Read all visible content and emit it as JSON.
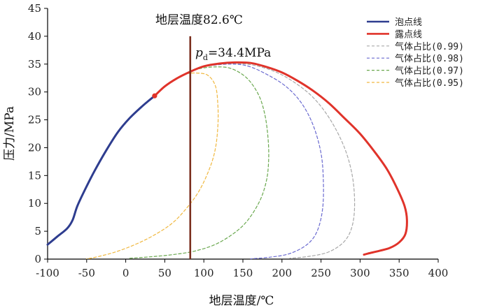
{
  "chart_data": {
    "type": "line",
    "title": "地层温度82.6℃",
    "xlabel": "地层温度/℃",
    "ylabel": "压力/MPa",
    "xlim": [
      -100,
      400
    ],
    "ylim": [
      0,
      45
    ],
    "xticks": [
      "-100",
      "-50",
      "0",
      "50",
      "100",
      "150",
      "200",
      "250",
      "300",
      "350",
      "400"
    ],
    "yticks": [
      "0",
      "5",
      "10",
      "15",
      "20",
      "25",
      "30",
      "35",
      "40",
      "45"
    ],
    "grid": false,
    "legend_position": "top-right",
    "series": [
      {
        "name": "泡点线",
        "color": "#2e3d8f",
        "style": "solid",
        "points": [
          [
            -100,
            2.6
          ],
          [
            -88,
            4.0
          ],
          [
            -75,
            5.5
          ],
          [
            -68,
            7.0
          ],
          [
            -62,
            9.5
          ],
          [
            -52,
            12.5
          ],
          [
            -40,
            15.8
          ],
          [
            -25,
            19.5
          ],
          [
            -10,
            22.8
          ],
          [
            5,
            25.3
          ],
          [
            20,
            27.3
          ],
          [
            30,
            28.5
          ],
          [
            37,
            29.3
          ]
        ]
      },
      {
        "name": "露点线",
        "color": "#e0332a",
        "style": "solid",
        "points": [
          [
            37,
            29.3
          ],
          [
            50,
            31.0
          ],
          [
            65,
            32.4
          ],
          [
            82,
            33.6
          ],
          [
            100,
            34.6
          ],
          [
            120,
            35.1
          ],
          [
            140,
            35.3
          ],
          [
            160,
            35.2
          ],
          [
            180,
            34.5
          ],
          [
            200,
            33.5
          ],
          [
            220,
            32.0
          ],
          [
            240,
            30.2
          ],
          [
            260,
            28.0
          ],
          [
            280,
            25.3
          ],
          [
            300,
            22.5
          ],
          [
            320,
            19.0
          ],
          [
            335,
            16.0
          ],
          [
            348,
            12.5
          ],
          [
            357,
            9.5
          ],
          [
            360,
            7.0
          ],
          [
            358,
            4.5
          ],
          [
            350,
            3.0
          ],
          [
            338,
            2.0
          ],
          [
            325,
            1.5
          ],
          [
            310,
            1.0
          ],
          [
            305,
            0.8
          ]
        ]
      },
      {
        "name": "气体占比(0.99)",
        "color": "#a8a8a8",
        "style": "dashed",
        "points": [
          [
            100,
            34.6
          ],
          [
            130,
            35.0
          ],
          [
            160,
            34.9
          ],
          [
            190,
            33.7
          ],
          [
            215,
            31.8
          ],
          [
            240,
            29.0
          ],
          [
            262,
            25.0
          ],
          [
            280,
            20.0
          ],
          [
            290,
            15.0
          ],
          [
            293,
            10.0
          ],
          [
            290,
            6.0
          ],
          [
            280,
            3.2
          ],
          [
            260,
            1.3
          ],
          [
            235,
            0.5
          ],
          [
            210,
            0.15
          ]
        ]
      },
      {
        "name": "气体占比(0.98)",
        "color": "#6a6ad0",
        "style": "dashed",
        "points": [
          [
            100,
            34.6
          ],
          [
            130,
            35.0
          ],
          [
            155,
            34.7
          ],
          [
            180,
            33.2
          ],
          [
            205,
            31.0
          ],
          [
            225,
            28.0
          ],
          [
            240,
            24.0
          ],
          [
            250,
            19.0
          ],
          [
            253,
            14.0
          ],
          [
            252,
            9.0
          ],
          [
            245,
            5.0
          ],
          [
            232,
            2.6
          ],
          [
            210,
            1.0
          ],
          [
            185,
            0.35
          ],
          [
            160,
            0.05
          ]
        ]
      },
      {
        "name": "气体占比(0.97)",
        "color": "#6aa84f",
        "style": "dashed",
        "points": [
          [
            82,
            33.6
          ],
          [
            95,
            34.2
          ],
          [
            115,
            34.5
          ],
          [
            135,
            34.2
          ],
          [
            155,
            32.5
          ],
          [
            170,
            29.5
          ],
          [
            178,
            26.0
          ],
          [
            182,
            22.0
          ],
          [
            183,
            18.0
          ],
          [
            180,
            14.0
          ],
          [
            170,
            10.0
          ],
          [
            150,
            6.0
          ],
          [
            120,
            3.0
          ],
          [
            90,
            1.5
          ],
          [
            60,
            0.8
          ],
          [
            30,
            0.4
          ],
          [
            5,
            0.15
          ]
        ]
      },
      {
        "name": "气体占比(0.95)",
        "color": "#f0b840",
        "style": "dashed",
        "points": [
          [
            78,
            33.3
          ],
          [
            90,
            33.4
          ],
          [
            105,
            33.0
          ],
          [
            115,
            31.0
          ],
          [
            118,
            27.5
          ],
          [
            118,
            24.0
          ],
          [
            115,
            20.0
          ],
          [
            108,
            16.5
          ],
          [
            95,
            12.5
          ],
          [
            80,
            9.5
          ],
          [
            60,
            6.5
          ],
          [
            35,
            4.2
          ],
          [
            10,
            2.5
          ],
          [
            -15,
            1.2
          ],
          [
            -40,
            0.3
          ],
          [
            -50,
            0.05
          ]
        ]
      }
    ],
    "critical_point": {
      "x": 37,
      "y": 29.3,
      "color": "#e0332a"
    },
    "vertical_line": {
      "x": 82.6,
      "ymin": 0,
      "ymax": 40,
      "color": "#7a2e1e"
    },
    "annotations": {
      "pd_symbol": "p",
      "pd_subscript": "d",
      "pd_value": "=34.4MPa"
    }
  }
}
